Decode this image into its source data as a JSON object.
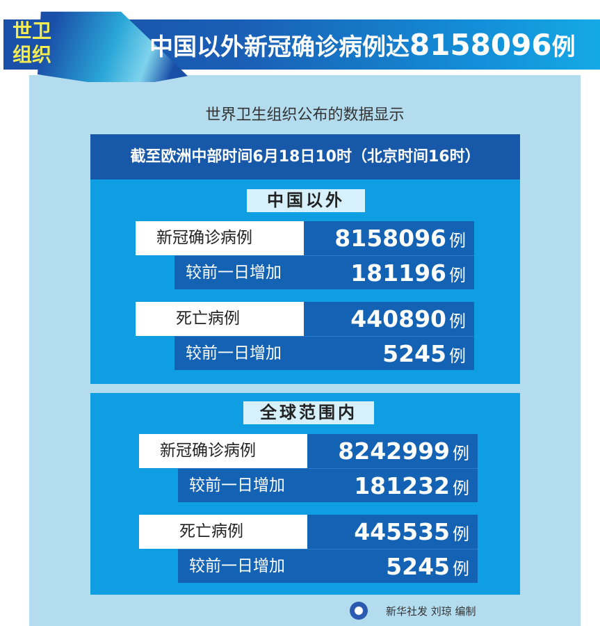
{
  "header": {
    "tag": [
      "世卫",
      "组织"
    ],
    "title_prefix": "中国以外新冠确诊病例达",
    "title_number": "8158096",
    "title_suffix": "例"
  },
  "subtitle": "世界卫生组织公布的数据显示",
  "date_bar": "截至欧洲中部时间6月18日10时（北京时间16时）",
  "sections": [
    {
      "title": "中国以外",
      "confirmed_label": "新冠确诊病例",
      "confirmed": "8158096",
      "confirmed_delta_label": "较前一日增加",
      "confirmed_delta": "181196",
      "deaths_label": "死亡病例",
      "deaths": "440890",
      "deaths_delta_label": "较前一日增加",
      "deaths_delta": "5245",
      "unit": "例"
    },
    {
      "title": "全球范围内",
      "confirmed_label": "新冠确诊病例",
      "confirmed": "8242999",
      "confirmed_delta_label": "较前一日增加",
      "confirmed_delta": "181232",
      "deaths_label": "死亡病例",
      "deaths": "445535",
      "deaths_delta_label": "较前一日增加",
      "deaths_delta": "5245",
      "unit": "例"
    }
  ],
  "credit": "新华社发  刘琼  编制",
  "colors": {
    "band": "#1a5fb5",
    "section": "#0f9ee2",
    "value_bg": "#1362b3",
    "tag_text": "#f3ec54",
    "panel": "#b4dcef"
  }
}
